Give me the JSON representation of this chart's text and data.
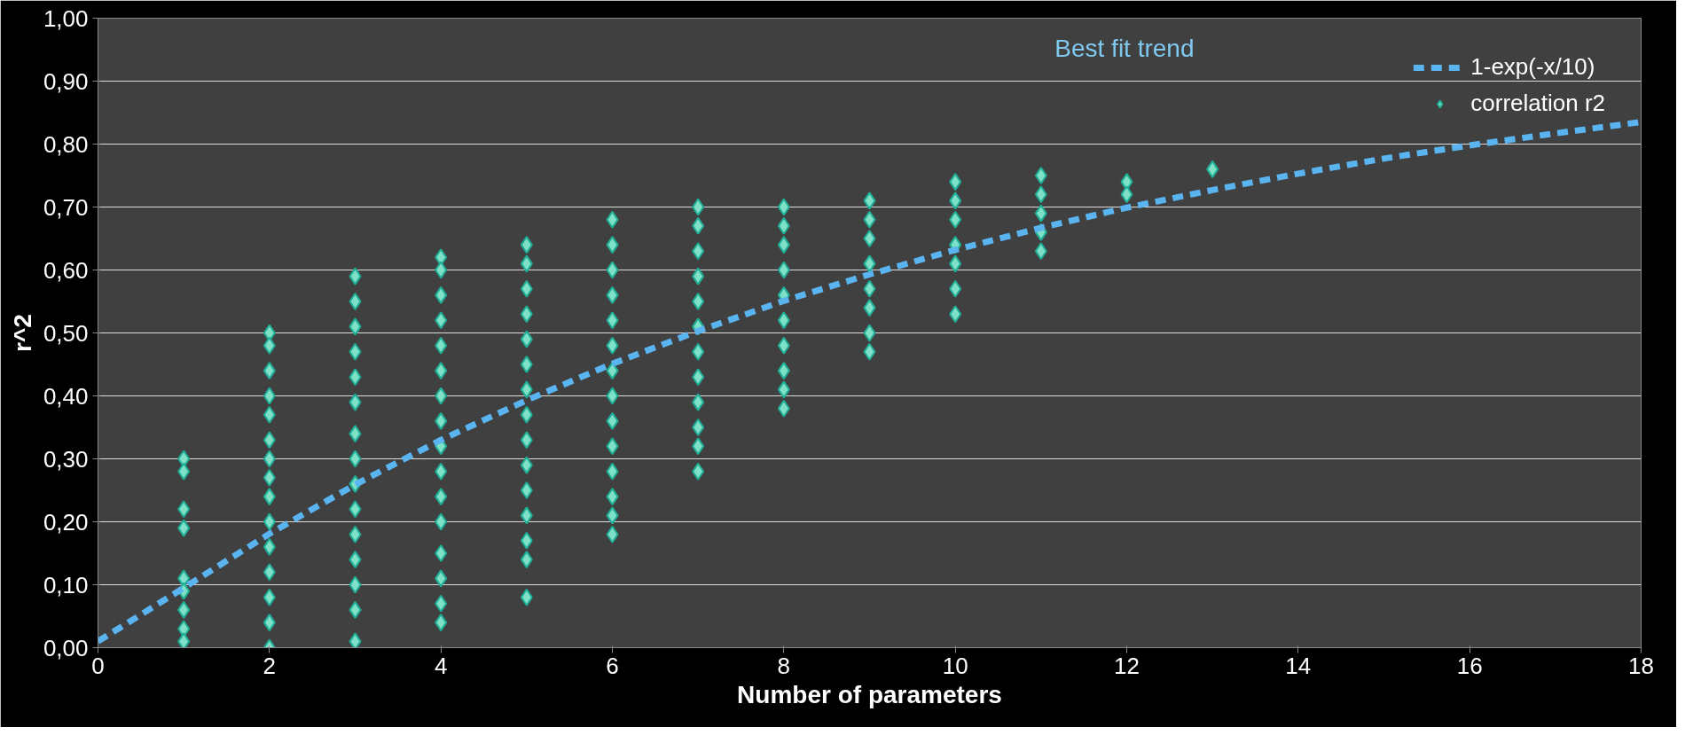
{
  "chart_data": {
    "type": "scatter",
    "xlabel": "Number of parameters",
    "ylabel": "r^2",
    "xlim": [
      0,
      18
    ],
    "xticks": [
      0,
      2,
      4,
      6,
      8,
      10,
      12,
      14,
      16,
      18
    ],
    "ylim": [
      0,
      1
    ],
    "yticks": [
      {
        "value": 0,
        "label": "0,00"
      },
      {
        "value": 0.1,
        "label": "0,10"
      },
      {
        "value": 0.2,
        "label": "0,20"
      },
      {
        "value": 0.3,
        "label": "0,30"
      },
      {
        "value": 0.4,
        "label": "0,40"
      },
      {
        "value": 0.5,
        "label": "0,50"
      },
      {
        "value": 0.6,
        "label": "0,60"
      },
      {
        "value": 0.7,
        "label": "0,70"
      },
      {
        "value": 0.8,
        "label": "0,80"
      },
      {
        "value": 0.9,
        "label": "0,90"
      },
      {
        "value": 1,
        "label": "1,00"
      }
    ],
    "grid": "y",
    "legend": "top right",
    "annotations": [
      "Best fit trend"
    ],
    "series": [
      {
        "name": "1-exp(-x/10)",
        "type": "line",
        "line_style": "dashed",
        "marker": "none",
        "color": "#5ab4f0",
        "x": [
          0,
          1,
          2,
          3,
          4,
          5,
          6,
          7,
          8,
          9,
          10,
          11,
          12,
          13,
          14,
          15,
          16,
          17,
          18
        ],
        "values": [
          0.01,
          0.095,
          0.181,
          0.259,
          0.33,
          0.393,
          0.451,
          0.503,
          0.551,
          0.593,
          0.632,
          0.667,
          0.699,
          0.727,
          0.753,
          0.777,
          0.798,
          0.817,
          0.835
        ]
      },
      {
        "name": "correlation r2",
        "marker": "diamond",
        "color": "#7fe0c8",
        "x": [
          1,
          1,
          1,
          1,
          1,
          1,
          1,
          1,
          1,
          2,
          2,
          2,
          2,
          2,
          2,
          2,
          2,
          2,
          2,
          2,
          2,
          2,
          2,
          2,
          3,
          3,
          3,
          3,
          3,
          3,
          3,
          3,
          3,
          3,
          3,
          3,
          3,
          3,
          3,
          4,
          4,
          4,
          4,
          4,
          4,
          4,
          4,
          4,
          4,
          4,
          4,
          4,
          4,
          4,
          4,
          5,
          5,
          5,
          5,
          5,
          5,
          5,
          5,
          5,
          5,
          5,
          5,
          5,
          5,
          5,
          6,
          6,
          6,
          6,
          6,
          6,
          6,
          6,
          6,
          6,
          6,
          6,
          6,
          6,
          7,
          7,
          7,
          7,
          7,
          7,
          7,
          7,
          7,
          7,
          7,
          7,
          8,
          8,
          8,
          8,
          8,
          8,
          8,
          8,
          8,
          8,
          9,
          9,
          9,
          9,
          9,
          9,
          9,
          9,
          10,
          10,
          10,
          10,
          10,
          10,
          10,
          11,
          11,
          11,
          11,
          11,
          12,
          12,
          13
        ],
        "values": [
          0.3,
          0.28,
          0.22,
          0.19,
          0.11,
          0.09,
          0.06,
          0.03,
          0.01,
          0.5,
          0.48,
          0.44,
          0.4,
          0.37,
          0.33,
          0.3,
          0.27,
          0.24,
          0.2,
          0.16,
          0.12,
          0.08,
          0.04,
          0.0,
          0.59,
          0.55,
          0.51,
          0.47,
          0.43,
          0.39,
          0.34,
          0.3,
          0.26,
          0.22,
          0.18,
          0.14,
          0.1,
          0.06,
          0.01,
          0.62,
          0.6,
          0.56,
          0.52,
          0.48,
          0.44,
          0.4,
          0.36,
          0.32,
          0.28,
          0.24,
          0.2,
          0.15,
          0.11,
          0.07,
          0.04,
          0.64,
          0.61,
          0.57,
          0.53,
          0.49,
          0.45,
          0.41,
          0.37,
          0.33,
          0.29,
          0.25,
          0.21,
          0.17,
          0.14,
          0.08,
          0.68,
          0.64,
          0.6,
          0.56,
          0.52,
          0.48,
          0.44,
          0.4,
          0.36,
          0.32,
          0.28,
          0.24,
          0.21,
          0.18,
          0.7,
          0.67,
          0.63,
          0.59,
          0.55,
          0.51,
          0.47,
          0.43,
          0.39,
          0.35,
          0.32,
          0.28,
          0.7,
          0.67,
          0.64,
          0.6,
          0.56,
          0.52,
          0.48,
          0.44,
          0.41,
          0.38,
          0.71,
          0.68,
          0.65,
          0.61,
          0.57,
          0.54,
          0.5,
          0.47,
          0.74,
          0.71,
          0.68,
          0.64,
          0.61,
          0.57,
          0.53,
          0.75,
          0.72,
          0.69,
          0.66,
          0.63,
          0.74,
          0.72,
          0.76
        ]
      }
    ]
  }
}
